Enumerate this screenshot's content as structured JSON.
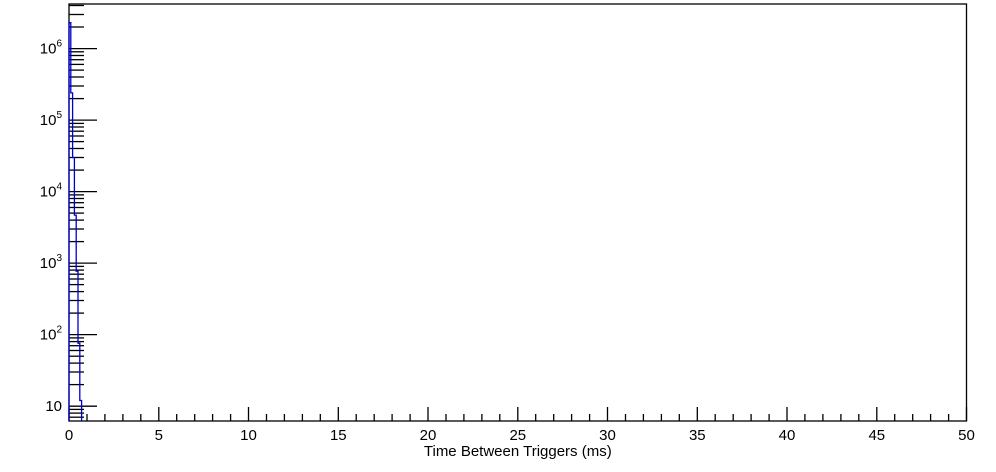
{
  "chart_data": {
    "type": "bar",
    "subtype": "step-histogram",
    "title": "",
    "xlabel": "Time Between Triggers (ms)",
    "ylabel": "",
    "x_scale": "linear",
    "y_scale": "log",
    "xlim": [
      0,
      50
    ],
    "ylim": [
      6.2,
      4200000
    ],
    "x_major_tick_labels": [
      "0",
      "5",
      "10",
      "15",
      "20",
      "25",
      "30",
      "35",
      "40",
      "45",
      "50"
    ],
    "x_major_tick_values": [
      0,
      5,
      10,
      15,
      20,
      25,
      30,
      35,
      40,
      45,
      50
    ],
    "x_minor_tick_step_ms": 1,
    "y_major_tick_labels": [
      "10",
      "10^2",
      "10^3",
      "10^4",
      "10^5",
      "10^6"
    ],
    "y_major_tick_values": [
      10,
      100,
      1000,
      10000,
      100000,
      1000000
    ],
    "bin_width_ms": 0.1,
    "bin_edges_ms": [
      0.0,
      0.1,
      0.2,
      0.3,
      0.4,
      0.5,
      0.6,
      0.7
    ],
    "counts": [
      2300000,
      240000,
      30000,
      4700,
      770,
      76,
      12
    ],
    "empty_range_ms": [
      0.7,
      50.0
    ],
    "grid": "off",
    "legend": "none",
    "line_color": "#0000cc",
    "axis_color": "#000000",
    "background_color": "#ffffff"
  }
}
